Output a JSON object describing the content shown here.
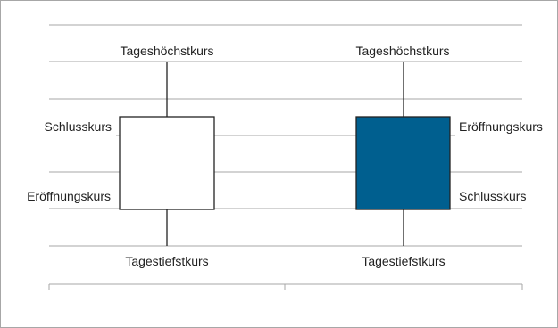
{
  "labels": {
    "left_high": "Tageshöchstkurs",
    "left_low": "Tagestiefstkurs",
    "left_upper_side": "Schlusskurs",
    "left_lower_side": "Eröffnungskurs",
    "right_high": "Tageshöchstkurs",
    "right_low": "Tagestiefstkurs",
    "right_upper_side": "Eröffnungskurs",
    "right_lower_side": "Schlusskurs"
  },
  "colors": {
    "gridline": "#a7a7a7",
    "wick": "#222222",
    "bullish_body": "#ffffff",
    "bearish_body": "#005f8f",
    "body_stroke": "#222222"
  }
}
